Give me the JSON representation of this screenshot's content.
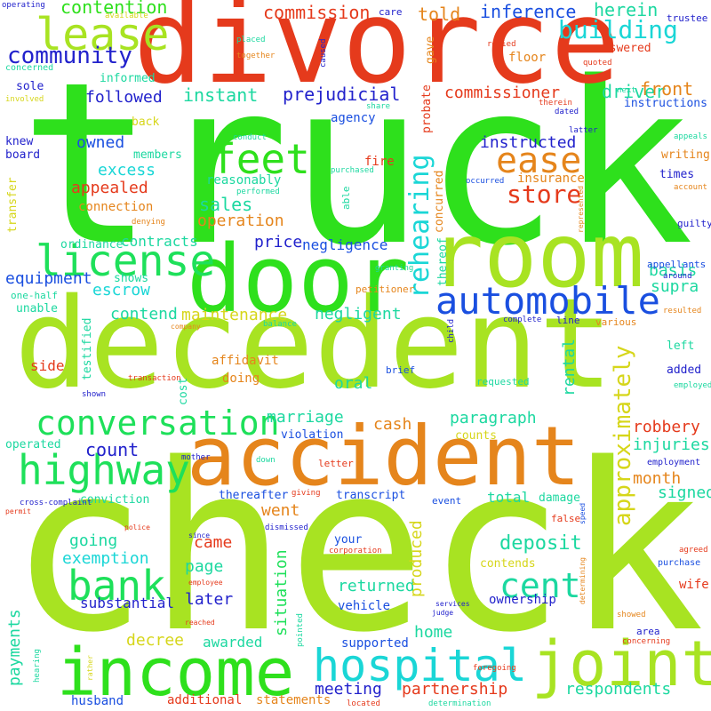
{
  "palette": {
    "lime": "#a8e322",
    "green": "#2ee01c",
    "bright_green": "#1ee05a",
    "orange": "#e5851c",
    "red": "#e53a1c",
    "cyan": "#1ad6d6",
    "blue": "#1a4fe0",
    "navy": "#2222cc",
    "yellow": "#d6d61a",
    "teal": "#1cd8a0"
  },
  "words": {
    "truck": "truck",
    "check": "check",
    "decedent": "decedent",
    "divorce": "divorce",
    "door": "door",
    "room": "room",
    "accident": "accident",
    "income": "income",
    "joint": "joint",
    "hospital": "hospital",
    "automobile": "automobile",
    "conversation": "conversation",
    "highway": "highway",
    "license": "license",
    "lease": "lease",
    "feet": "feet",
    "bank": "bank",
    "ease": "ease",
    "cent": "cent",
    "rehearing": "rehearing",
    "approximately": "approximately",
    "community": "community",
    "building": "building",
    "store": "store",
    "contention": "contention",
    "commission": "commission",
    "told": "told",
    "inference": "inference",
    "herein": "herein",
    "prejudicial": "prejudicial",
    "driver": "driver",
    "front": "front",
    "commissioner": "commissioner",
    "instant": "instant",
    "followed": "followed",
    "instructed": "instructed",
    "owned": "owned",
    "excess": "excess",
    "appealed": "appealed",
    "sales": "sales",
    "operation": "operation",
    "price": "price",
    "negligence": "negligence",
    "contracts": "contracts",
    "equipment": "equipment",
    "escrow": "escrow",
    "contend": "contend",
    "maintenance": "maintenance",
    "negligent": "negligent",
    "basis": "basis",
    "supra": "supra",
    "marriage": "marriage",
    "cash": "cash",
    "paragraph": "paragraph",
    "count": "count",
    "robbery": "robbery",
    "injuries": "injuries",
    "month": "month",
    "signed": "signed",
    "went": "went",
    "deposit": "deposit",
    "going": "going",
    "came": "came",
    "page": "page",
    "exemption": "exemption",
    "returned": "returned",
    "situation": "situation",
    "produced": "produced",
    "later": "later",
    "substantial": "substantial",
    "payments": "payments",
    "decree": "decree",
    "awarded": "awarded",
    "meeting": "meeting",
    "home": "home",
    "partnership": "partnership",
    "respondents": "respondents",
    "husband": "husband",
    "additional": "additional",
    "statements": "statements",
    "supported": "supported",
    "vehicle": "vehicle",
    "ownership": "ownership",
    "wife": "wife",
    "oral": "oral",
    "affidavit": "affidavit",
    "doing": "doing",
    "connection": "connection",
    "reasonably": "reasonably",
    "insurance": "insurance",
    "fire": "fire",
    "agency": "agency",
    "floor": "floor",
    "answered": "answered",
    "sole": "sole",
    "informed": "informed",
    "knew": "knew",
    "board": "board",
    "back": "back",
    "members": "members",
    "times": "times",
    "writing": "writing",
    "guilty": "guilty",
    "instructions": "instructions",
    "appellants": "appellants",
    "ordinance": "ordinance",
    "shows": "shows",
    "unable": "unable",
    "testified": "testified",
    "side": "side",
    "cost": "cost",
    "rental": "rental",
    "operated": "operated",
    "violation": "violation",
    "counts": "counts",
    "thereafter": "thereafter",
    "conviction": "conviction",
    "transcript": "transcript",
    "total": "total",
    "damage": "damage",
    "event": "event",
    "your": "your",
    "contends": "contends",
    "requested": "requested",
    "brief": "brief",
    "left": "left",
    "added": "added",
    "employment": "employment",
    "purchase": "purchase",
    "area": "area",
    "care": "care",
    "trustee": "trustee",
    "operating": "operating",
    "available": "available",
    "placed": "placed",
    "together": "together",
    "caused": "caused",
    "relied": "relied",
    "gave": "gave",
    "quoted": "quoted",
    "concerned": "concerned",
    "involved": "involved",
    "next": "next",
    "therein": "therein",
    "dated": "dated",
    "share": "share",
    "latter": "latter",
    "conduct": "conduct",
    "purchased": "purchased",
    "performed": "performed",
    "able": "able",
    "occurred": "occurred",
    "appeals": "appeals",
    "account": "account",
    "denying": "denying",
    "transfer": "transfer",
    "concurred": "concurred",
    "thereof": "thereof",
    "probate": "probate",
    "represented": "represented",
    "granting": "granting",
    "around": "around",
    "petitioner": "petitioner",
    "one_half": "one-half",
    "company": "company",
    "child": "child",
    "complete": "complete",
    "line": "line",
    "various": "various",
    "resulted": "resulted",
    "balance": "balance",
    "transaction": "transaction",
    "shown": "shown",
    "employed": "employed",
    "mother": "mother",
    "down": "down",
    "giving": "giving",
    "letter": "letter",
    "false": "false",
    "speed": "speed",
    "permit": "permit",
    "cross_complaint": "cross-complaint",
    "police": "police",
    "dismissed": "dismissed",
    "since": "since",
    "corporation": "corporation",
    "employee": "employee",
    "determining": "determining",
    "agreed": "agreed",
    "reached": "reached",
    "services": "services",
    "judge": "judge",
    "pointed": "pointed",
    "showed": "showed",
    "concerning": "concerning",
    "hearing": "hearing",
    "rather": "rather",
    "foregoing": "foregoing",
    "located": "located",
    "determination": "determination"
  }
}
